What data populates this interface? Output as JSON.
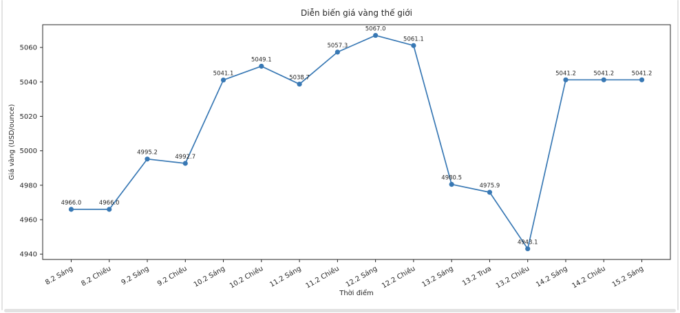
{
  "page": {
    "background_color": "#ffffff",
    "edge_color": "#e2e2e2"
  },
  "chart_data": {
    "type": "line",
    "title": "Diễn biến giá vàng thế giới",
    "xlabel": "Thời điểm",
    "ylabel": "Giá vàng (USD/ounce)",
    "categories": [
      "8.2 Sáng",
      "8.2 Chiều",
      "9.2 Sáng",
      "9.2 Chiều",
      "10.2 Sáng",
      "10.2 Chiều",
      "11.2 Sáng",
      "11.2 Chiều",
      "12.2 Sáng",
      "12.2 Chiều",
      "13.2 Sáng",
      "13.2 Trưa",
      "13.2 Chiều",
      "14.2 Sáng",
      "14.2 Chiều",
      "15.2 Sáng"
    ],
    "values": [
      4966.0,
      4966.0,
      4995.2,
      4992.7,
      5041.1,
      5049.1,
      5038.7,
      5057.3,
      5067.0,
      5061.1,
      4980.5,
      4975.9,
      4943.1,
      5041.2,
      5041.2,
      5041.2
    ],
    "value_label_decimals": 1,
    "yticks": [
      4940,
      4960,
      4980,
      5000,
      5020,
      5040,
      5060
    ],
    "ylim": [
      4936.9,
      5073.2
    ],
    "x_tick_rotation_deg": 30,
    "grid": false,
    "legend": null,
    "line_color": "#3878b4",
    "marker": "circle",
    "axis_color": "#262626"
  }
}
